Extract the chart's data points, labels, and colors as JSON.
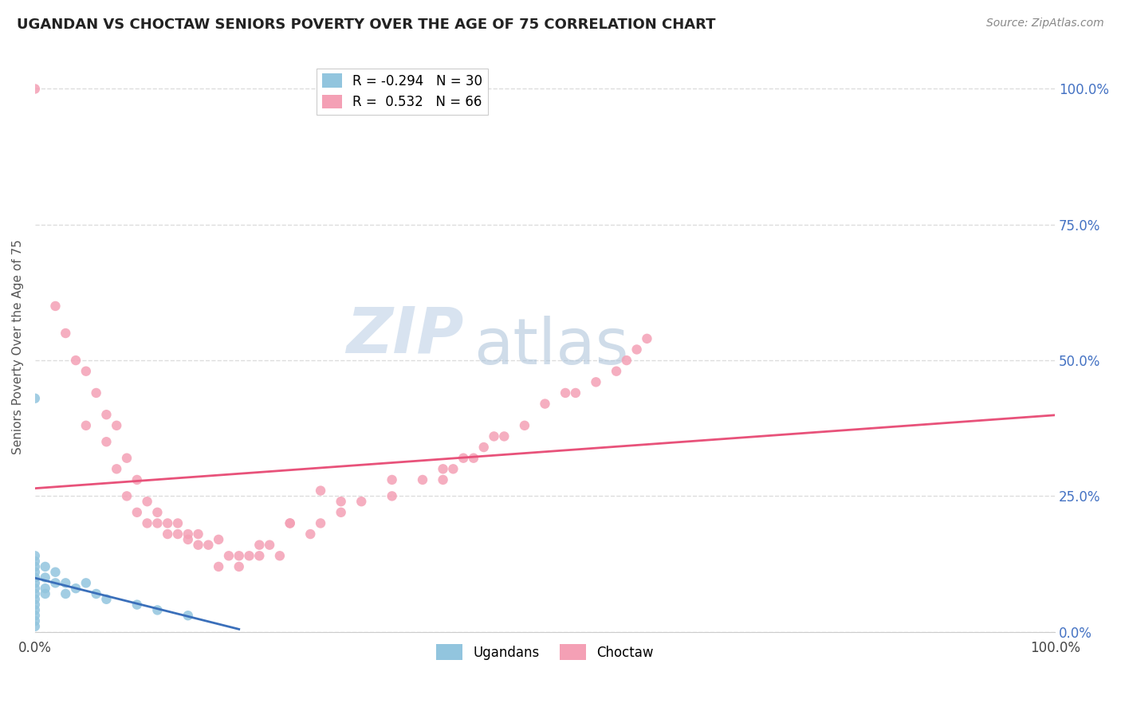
{
  "title": "UGANDAN VS CHOCTAW SENIORS POVERTY OVER THE AGE OF 75 CORRELATION CHART",
  "source_text": "Source: ZipAtlas.com",
  "ylabel": "Seniors Poverty Over the Age of 75",
  "ugandan_R": -0.294,
  "ugandan_N": 30,
  "choctaw_R": 0.532,
  "choctaw_N": 66,
  "ugandan_color": "#92c5de",
  "choctaw_color": "#f4a0b5",
  "ugandan_line_color": "#3a6fba",
  "choctaw_line_color": "#e8527a",
  "watermark_zip": "ZIP",
  "watermark_atlas": "atlas",
  "watermark_color_zip": "#c8d8ea",
  "watermark_color_atlas": "#b0c8e0",
  "background_color": "#ffffff",
  "grid_color": "#dddddd",
  "right_ytick_labels": [
    "100.0%",
    "75.0%",
    "50.0%",
    "25.0%",
    "0.0%"
  ],
  "right_ytick_values": [
    1.0,
    0.75,
    0.5,
    0.25,
    0.0
  ],
  "ugandan_points_x": [
    0.0,
    0.0,
    0.0,
    0.0,
    0.0,
    0.0,
    0.0,
    0.0,
    0.0,
    0.0,
    0.0,
    0.0,
    0.0,
    0.0,
    0.0,
    0.01,
    0.01,
    0.01,
    0.01,
    0.02,
    0.02,
    0.03,
    0.03,
    0.04,
    0.05,
    0.06,
    0.07,
    0.1,
    0.12,
    0.15
  ],
  "ugandan_points_y": [
    0.43,
    0.05,
    0.06,
    0.07,
    0.08,
    0.09,
    0.1,
    0.11,
    0.12,
    0.13,
    0.14,
    0.03,
    0.04,
    0.02,
    0.01,
    0.08,
    0.1,
    0.12,
    0.07,
    0.09,
    0.11,
    0.07,
    0.09,
    0.08,
    0.09,
    0.07,
    0.06,
    0.05,
    0.04,
    0.03
  ],
  "choctaw_points_x": [
    0.0,
    0.02,
    0.03,
    0.04,
    0.05,
    0.05,
    0.06,
    0.07,
    0.07,
    0.08,
    0.08,
    0.09,
    0.09,
    0.1,
    0.1,
    0.11,
    0.11,
    0.12,
    0.12,
    0.13,
    0.13,
    0.14,
    0.14,
    0.15,
    0.15,
    0.16,
    0.16,
    0.17,
    0.18,
    0.19,
    0.2,
    0.21,
    0.22,
    0.23,
    0.24,
    0.25,
    0.27,
    0.28,
    0.3,
    0.32,
    0.35,
    0.38,
    0.4,
    0.42,
    0.43,
    0.44,
    0.45,
    0.46,
    0.48,
    0.5,
    0.52,
    0.53,
    0.55,
    0.57,
    0.58,
    0.59,
    0.6,
    0.4,
    0.41,
    0.3,
    0.28,
    0.35,
    0.2,
    0.22,
    0.18,
    0.25
  ],
  "choctaw_points_y": [
    1.0,
    0.6,
    0.55,
    0.5,
    0.48,
    0.38,
    0.44,
    0.4,
    0.35,
    0.38,
    0.3,
    0.32,
    0.25,
    0.28,
    0.22,
    0.24,
    0.2,
    0.2,
    0.22,
    0.2,
    0.18,
    0.2,
    0.18,
    0.18,
    0.17,
    0.16,
    0.18,
    0.16,
    0.17,
    0.14,
    0.12,
    0.14,
    0.14,
    0.16,
    0.14,
    0.2,
    0.18,
    0.2,
    0.22,
    0.24,
    0.25,
    0.28,
    0.3,
    0.32,
    0.32,
    0.34,
    0.36,
    0.36,
    0.38,
    0.42,
    0.44,
    0.44,
    0.46,
    0.48,
    0.5,
    0.52,
    0.54,
    0.28,
    0.3,
    0.24,
    0.26,
    0.28,
    0.14,
    0.16,
    0.12,
    0.2
  ]
}
